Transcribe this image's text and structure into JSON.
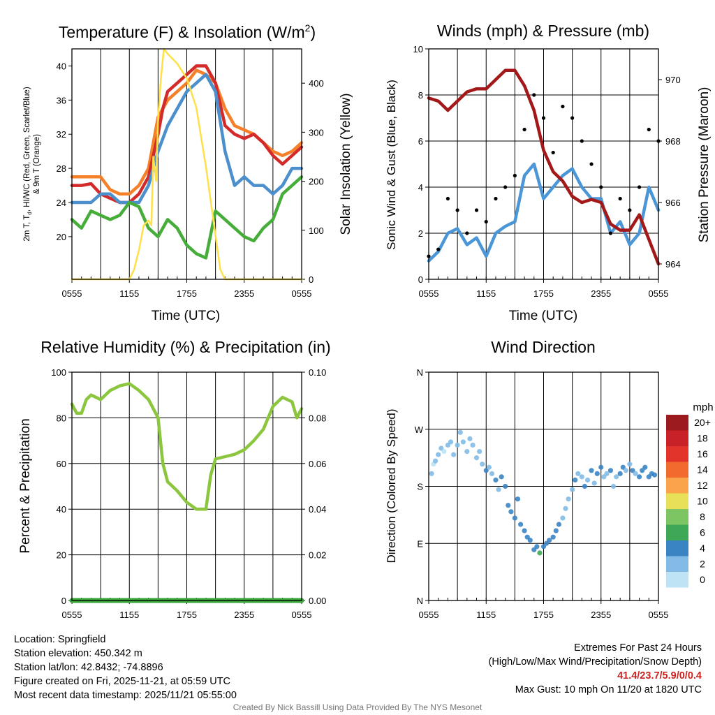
{
  "chart_data": [
    {
      "type": "line",
      "title_main": "Temperature (F) & Insolation (W/m",
      "title_sup": "2",
      "title_end": ")",
      "xlabel": "Time (UTC)",
      "ylabel_line1": "2m T, T",
      "ylabel_sub": "d",
      "ylabel_line1_end": ", HI/WC (Red, Green, Scarlet/Blue)",
      "ylabel_line2": "& 9m T (Orange)",
      "ylabel_right": "Solar Insolation (Yellow)",
      "x_ticks": [
        "0555",
        "1155",
        "1755",
        "2355",
        "0555"
      ],
      "xlim": [
        0,
        24
      ],
      "ylim": [
        15,
        42
      ],
      "y_ticks": [
        20,
        24,
        28,
        32,
        36,
        40
      ],
      "ylim_right": [
        0,
        470
      ],
      "y_ticks_right": [
        0,
        100,
        200,
        300,
        400
      ],
      "series": [
        {
          "name": "9m T",
          "color": "#f5802a",
          "axis": "left",
          "x": [
            0,
            1,
            2,
            3,
            4,
            5,
            6,
            7,
            8,
            9,
            9.5,
            10,
            11,
            12,
            13,
            14,
            15,
            16,
            17,
            18,
            19,
            20,
            21,
            22,
            23,
            24
          ],
          "values": [
            27,
            27,
            27,
            27,
            25.5,
            25,
            25,
            26,
            28,
            34,
            35,
            36,
            37,
            38,
            39.5,
            39,
            38,
            35,
            33,
            32.5,
            32,
            31,
            30,
            29.5,
            30,
            31
          ]
        },
        {
          "name": "2m T",
          "color": "#d32a2a",
          "axis": "left",
          "x": [
            0,
            1,
            2,
            3,
            4,
            5,
            6,
            7,
            8,
            9,
            9.5,
            10,
            11,
            12,
            13,
            14,
            15,
            16,
            17,
            18,
            19,
            20,
            21,
            22,
            23,
            24
          ],
          "values": [
            26,
            26,
            26.2,
            25,
            24.5,
            24,
            24,
            25,
            27,
            32,
            35,
            37,
            38,
            39,
            40,
            40,
            38,
            33,
            32,
            31.5,
            32,
            31,
            29.5,
            28.5,
            29.5,
            30.5
          ]
        },
        {
          "name": "Wind chill",
          "color": "#4b8fcc",
          "axis": "left",
          "x": [
            0,
            1,
            2,
            3,
            4,
            5,
            6,
            7,
            8,
            9,
            10,
            11,
            12,
            13,
            14,
            15,
            16,
            17,
            18,
            19,
            20,
            21,
            22,
            23,
            24
          ],
          "values": [
            24,
            24,
            24,
            25,
            25,
            24,
            24,
            24,
            26,
            30,
            33,
            35,
            37,
            38,
            39,
            37,
            30,
            26,
            27,
            26,
            26,
            25,
            26,
            28,
            28
          ]
        },
        {
          "name": "Dew point",
          "color": "#46ad3b",
          "axis": "left",
          "x": [
            0,
            1,
            2,
            3,
            4,
            5,
            6,
            7,
            8,
            9,
            10,
            11,
            12,
            13,
            14,
            15,
            16,
            17,
            18,
            19,
            20,
            21,
            22,
            23,
            24
          ],
          "values": [
            22,
            21,
            23,
            22.5,
            22,
            22.5,
            24,
            23.5,
            21,
            20,
            22,
            21,
            19,
            18,
            17.5,
            23,
            22,
            21,
            20,
            19.5,
            21,
            22,
            25,
            26,
            27
          ]
        },
        {
          "name": "Solar insolation",
          "color": "#ffe04a",
          "axis": "right",
          "x": [
            0,
            6,
            6.5,
            7,
            7.5,
            8,
            8.3,
            8.5,
            8.8,
            9,
            9.3,
            9.6,
            10,
            11,
            12,
            13,
            14,
            15,
            15.5,
            16,
            17,
            24
          ],
          "values": [
            0,
            0,
            20,
            60,
            110,
            120,
            110,
            250,
            200,
            330,
            410,
            470,
            460,
            440,
            410,
            350,
            230,
            90,
            20,
            0,
            0,
            0
          ]
        }
      ]
    },
    {
      "type": "line",
      "title": "Winds (mph) & Pressure (mb)",
      "xlabel": "Time (UTC)",
      "ylabel": "Sonic Wind & Gust (Blue, Black)",
      "ylabel_right": "Station Pressure (Maroon)",
      "x_ticks": [
        "0555",
        "1155",
        "1755",
        "2355",
        "0555"
      ],
      "xlim": [
        0,
        24
      ],
      "ylim": [
        0,
        10
      ],
      "y_ticks": [
        0,
        2,
        4,
        6,
        8,
        10
      ],
      "ylim_right": [
        963.5,
        971
      ],
      "y_ticks_right": [
        964,
        966,
        968,
        970
      ],
      "series": [
        {
          "name": "Sonic wind",
          "color": "#4b96d6",
          "axis": "left",
          "x": [
            0,
            1,
            2,
            3,
            4,
            5,
            6,
            7,
            8,
            9,
            10,
            11,
            12,
            13,
            14,
            15,
            16,
            17,
            18,
            19,
            20,
            21,
            22,
            23,
            24
          ],
          "values": [
            0.8,
            1.2,
            2.0,
            2.2,
            1.5,
            1.8,
            1.0,
            2.0,
            2.3,
            2.5,
            4.5,
            5.0,
            3.5,
            4.0,
            4.5,
            4.8,
            4.0,
            3.5,
            3.5,
            2.0,
            2.5,
            1.5,
            2.0,
            4.0,
            3.0
          ]
        },
        {
          "name": "Gust",
          "color": "#000000",
          "axis": "left",
          "style": "dots",
          "x": [
            0,
            1,
            2,
            3,
            4,
            5,
            6,
            7,
            8,
            9,
            10,
            11,
            12,
            13,
            14,
            15,
            16,
            17,
            18,
            19,
            20,
            21,
            22,
            23,
            24
          ],
          "values": [
            1.0,
            1.3,
            3.5,
            3.0,
            2.0,
            3.0,
            2.5,
            3.5,
            4.0,
            4.5,
            6.5,
            8.0,
            7.0,
            5.5,
            7.5,
            7.0,
            6.0,
            5.0,
            4.0,
            2.0,
            3.5,
            3.0,
            4.0,
            6.5,
            6.0
          ]
        },
        {
          "name": "Station pressure",
          "color": "#a31818",
          "axis": "right",
          "x": [
            0,
            1,
            2,
            3,
            4,
            5,
            6,
            7,
            8,
            9,
            10,
            11,
            12,
            13,
            14,
            15,
            16,
            17,
            18,
            19,
            20,
            21,
            22,
            23,
            24
          ],
          "values": [
            969.4,
            969.3,
            969.0,
            969.3,
            969.6,
            969.7,
            969.7,
            970.0,
            970.3,
            970.3,
            969.8,
            969.0,
            967.7,
            967.0,
            966.7,
            966.2,
            966.0,
            966.1,
            966.0,
            965.3,
            965.1,
            965.1,
            965.6,
            964.8,
            964.0
          ]
        }
      ]
    },
    {
      "type": "line",
      "title": "Relative Humidity (%) & Precipitation (in)",
      "ylabel": "Percent & Precipitation",
      "x_ticks": [
        "0555",
        "1155",
        "1755",
        "2355",
        "0555"
      ],
      "xlim": [
        0,
        24
      ],
      "ylim": [
        0,
        100
      ],
      "y_ticks": [
        0,
        20,
        40,
        60,
        80,
        100
      ],
      "ylim_right": [
        0,
        0.1
      ],
      "y_ticks_right": [
        "0.00",
        "0.02",
        "0.04",
        "0.06",
        "0.08",
        "0.10"
      ],
      "series": [
        {
          "name": "Relative humidity",
          "color": "#8cc63f",
          "axis": "left",
          "x": [
            0,
            0.5,
            1,
            1.5,
            2,
            3,
            4,
            5,
            6,
            7,
            8,
            9,
            9.5,
            10,
            11,
            12,
            13,
            14,
            14.5,
            15,
            16,
            17,
            18,
            19,
            20,
            21,
            22,
            23,
            23.5,
            24
          ],
          "values": [
            86,
            82,
            82,
            88,
            90,
            88,
            92,
            94,
            95,
            92,
            88,
            80,
            60,
            52,
            48,
            43,
            40,
            40,
            55,
            62,
            63,
            64,
            66,
            70,
            75,
            85,
            89,
            87,
            80,
            84
          ]
        },
        {
          "name": "Precipitation",
          "color": "#3aa53a",
          "axis": "right",
          "x": [
            0,
            24
          ],
          "values": [
            0,
            0
          ]
        }
      ]
    },
    {
      "type": "scatter",
      "title": "Wind Direction",
      "ylabel": "Direction (Colored By Speed)",
      "x_ticks": [
        "0555",
        "1155",
        "1755",
        "2355",
        "0555"
      ],
      "xlim": [
        0,
        24
      ],
      "ylim": [
        0,
        360
      ],
      "y_ticks": [
        "N",
        "E",
        "S",
        "W",
        "N"
      ],
      "colorbar_title": "mph",
      "colorbar_labels": [
        "20+",
        "18",
        "16",
        "14",
        "12",
        "10",
        "8",
        "6",
        "4",
        "2",
        "0"
      ],
      "colorbar_colors": [
        "#9b1b1e",
        "#c82127",
        "#e2342b",
        "#f26a2d",
        "#fba34a",
        "#e9e05a",
        "#7dc462",
        "#3fa857",
        "#3b84c4",
        "#82bbe5",
        "#bde3f5"
      ],
      "points": {
        "x": [
          0.3,
          0.5,
          0.7,
          1,
          1.3,
          1.6,
          2,
          2.3,
          2.6,
          3,
          3.3,
          3.6,
          4,
          4.3,
          4.6,
          5,
          5.3,
          5.6,
          6,
          6.3,
          6.6,
          7,
          7.3,
          7.6,
          8,
          8.3,
          8.6,
          9,
          9.3,
          9.6,
          10,
          10.3,
          10.6,
          11,
          11.3,
          11.6,
          12,
          12.3,
          12.6,
          13,
          13.3,
          13.6,
          14,
          14.3,
          14.6,
          15,
          15.3,
          15.6,
          16,
          16.3,
          16.6,
          17,
          17.3,
          17.6,
          18,
          18.3,
          18.6,
          19,
          19.3,
          19.6,
          20,
          20.3,
          20.6,
          21,
          21.3,
          21.6,
          22,
          22.3,
          22.6,
          23,
          23.3,
          23.6
        ],
        "y": [
          200,
          215,
          220,
          230,
          240,
          235,
          245,
          250,
          230,
          245,
          265,
          250,
          235,
          255,
          245,
          225,
          235,
          215,
          205,
          210,
          200,
          190,
          175,
          195,
          180,
          150,
          140,
          130,
          160,
          120,
          110,
          100,
          95,
          80,
          85,
          75,
          85,
          90,
          95,
          100,
          110,
          120,
          130,
          145,
          160,
          175,
          190,
          200,
          195,
          180,
          190,
          205,
          185,
          200,
          210,
          195,
          200,
          205,
          180,
          195,
          200,
          210,
          205,
          215,
          205,
          200,
          195,
          205,
          210,
          195,
          200,
          198
        ],
        "speed": [
          2,
          1,
          2,
          2,
          2,
          1,
          3,
          2,
          2,
          3,
          2,
          2,
          3,
          2,
          2,
          3,
          3,
          3,
          4,
          3,
          3,
          4,
          3,
          4,
          4,
          4,
          4,
          4,
          4,
          4,
          5,
          5,
          4,
          4,
          4,
          6,
          4,
          4,
          4,
          4,
          4,
          4,
          3,
          2,
          3,
          3,
          4,
          3,
          3,
          4,
          3,
          4,
          3,
          4,
          4,
          3,
          3,
          4,
          2,
          3,
          4,
          4,
          3,
          3,
          4,
          3,
          4,
          4,
          4,
          4,
          4,
          4
        ]
      }
    }
  ],
  "footer": {
    "location": "Location: Springfield",
    "elevation": "Station elevation: 450.342 m",
    "latlon": "Station lat/lon: 42.8432; -74.8896",
    "created": "Figure created on Fri, 2025-11-21, at 05:59 UTC",
    "recent": "Most recent data timestamp: 2025/11/21 05:55:00",
    "extremes_title": "Extremes For Past 24 Hours",
    "extremes_legend": "(High/Low/Max Wind/Precipitation/Snow Depth)",
    "extremes_values": "41.4/23.7/5.9/0/0.4",
    "max_gust": "Max Gust: 10 mph On 11/20 at 1820 UTC",
    "credit": "Created By Nick Bassill Using Data Provided By The NYS Mesonet"
  }
}
